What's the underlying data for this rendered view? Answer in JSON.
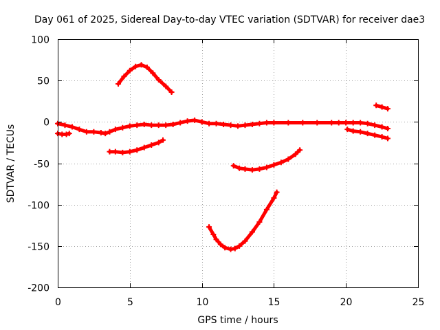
{
  "chart_data": {
    "type": "line",
    "title": "Day 061 of 2025, Sidereal Day-to-day VTEC variation (SDTVAR) for receiver dae3",
    "xlabel": "GPS time / hours",
    "ylabel": "SDTVAR / TECUs",
    "xlim": [
      0,
      25
    ],
    "ylim": [
      -200,
      100
    ],
    "xticks": [
      0,
      5,
      10,
      15,
      20,
      25
    ],
    "xtick_labels": [
      "0",
      "5",
      "10",
      "15",
      "20",
      "25"
    ],
    "yticks": [
      -200,
      -150,
      -100,
      -50,
      0,
      50,
      100
    ],
    "ytick_labels": [
      "-200",
      "-150",
      "-100",
      "-50",
      "0",
      "50",
      "100"
    ],
    "grid": true,
    "series_color": "#ff0000",
    "series": [
      {
        "name": "arc-main",
        "x": [
          0,
          0.5,
          1.0,
          1.5,
          2.0,
          2.5,
          3.0,
          3.3,
          3.6,
          4.0,
          4.5,
          5.0,
          5.5,
          6.0,
          6.5,
          7.0,
          7.5,
          8.0,
          8.5,
          9.0,
          9.5,
          10.0,
          10.5,
          11.0,
          11.5,
          12.0,
          12.5,
          13.0,
          13.5,
          14.0,
          14.5,
          15.0,
          16.0,
          17.0,
          18.0,
          19.0,
          19.5,
          20.0
        ],
        "y": [
          -2,
          -4,
          -6,
          -9,
          -12,
          -12,
          -13,
          -14,
          -12,
          -9,
          -7,
          -5,
          -4,
          -3,
          -4,
          -4,
          -4,
          -3,
          -1,
          1,
          2,
          0,
          -2,
          -2,
          -3,
          -4,
          -5,
          -4,
          -3,
          -2,
          -1,
          -1,
          -1,
          -1,
          -1,
          -1,
          -1,
          -1
        ]
      },
      {
        "name": "arc-end-upper",
        "x": [
          20.0,
          20.5,
          21.0,
          21.5,
          22.0,
          22.5,
          22.9
        ],
        "y": [
          -1,
          -1,
          -1,
          -2,
          -4,
          -6,
          -8
        ]
      },
      {
        "name": "arc-start-small",
        "x": [
          0.0,
          0.3,
          0.6,
          0.8
        ],
        "y": [
          -14,
          -15,
          -15,
          -14
        ]
      },
      {
        "name": "arc-hump",
        "x": [
          4.2,
          4.6,
          5.0,
          5.4,
          5.8,
          6.2,
          6.6,
          7.0,
          7.5,
          7.9
        ],
        "y": [
          46,
          55,
          62,
          67,
          69,
          66,
          59,
          51,
          43,
          36
        ]
      },
      {
        "name": "arc-lower-rise",
        "x": [
          3.6,
          4.0,
          4.5,
          5.0,
          5.5,
          6.0,
          6.5,
          7.0,
          7.3
        ],
        "y": [
          -36,
          -36,
          -37,
          -36,
          -34,
          -31,
          -28,
          -25,
          -22
        ]
      },
      {
        "name": "arc-late-lower",
        "x": [
          20.1,
          20.5,
          21.0,
          21.5,
          22.0,
          22.5,
          22.9
        ],
        "y": [
          -9,
          -11,
          -12,
          -14,
          -16,
          -18,
          -20
        ]
      },
      {
        "name": "arc-late-upper",
        "x": [
          22.1,
          22.5,
          22.9
        ],
        "y": [
          20,
          18,
          16
        ]
      },
      {
        "name": "arc-mid-dip",
        "x": [
          12.2,
          12.6,
          13.0,
          13.5,
          14.0,
          14.5,
          15.0,
          15.5,
          16.0,
          16.5,
          16.8
        ],
        "y": [
          -53,
          -56,
          -57,
          -58,
          -57,
          -55,
          -52,
          -49,
          -45,
          -39,
          -34
        ]
      },
      {
        "name": "arc-deep-dip",
        "x": [
          10.5,
          10.8,
          11.0,
          11.3,
          11.6,
          12.0,
          12.3,
          12.6,
          13.0,
          13.5,
          14.0,
          14.5,
          15.0,
          15.2
        ],
        "y": [
          -127,
          -136,
          -142,
          -148,
          -152,
          -154,
          -153,
          -150,
          -144,
          -133,
          -121,
          -106,
          -92,
          -85
        ]
      }
    ]
  }
}
